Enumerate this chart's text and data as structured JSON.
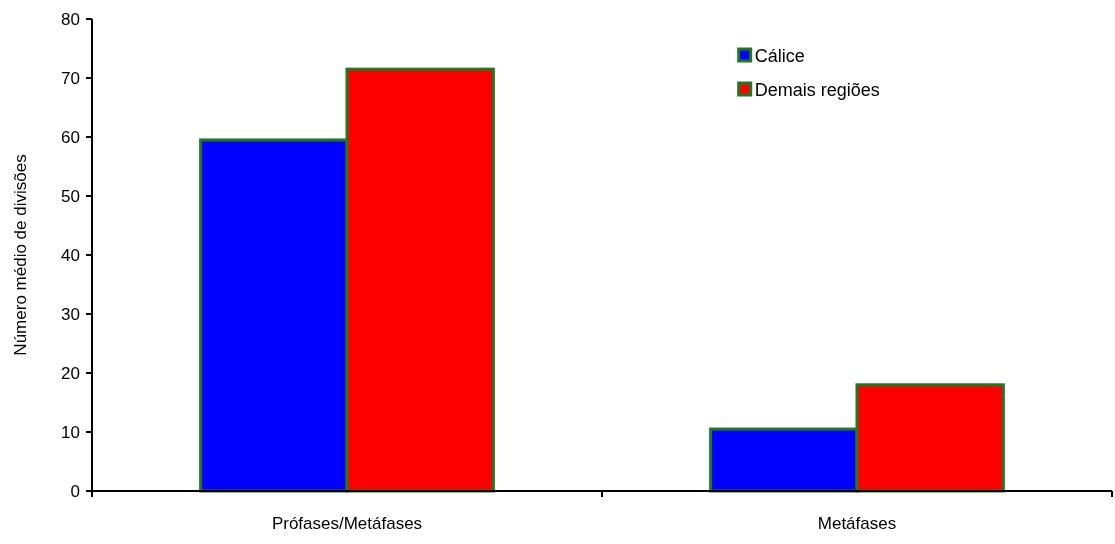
{
  "chart_data": {
    "type": "bar",
    "ylabel": "Número médio de divisões",
    "categories": [
      "Prófases/Metáfases",
      "Metáfases"
    ],
    "series": [
      {
        "name": "Cálice",
        "color": "#0000ff",
        "values": [
          59.5,
          10.5
        ]
      },
      {
        "name": "Demais regiões",
        "color": "#ff0000",
        "values": [
          71.5,
          18
        ]
      }
    ],
    "ylim": [
      0,
      80
    ],
    "yticks": [
      0,
      10,
      20,
      30,
      40,
      50,
      60,
      70,
      80
    ],
    "grid": false,
    "legend": "top right"
  }
}
